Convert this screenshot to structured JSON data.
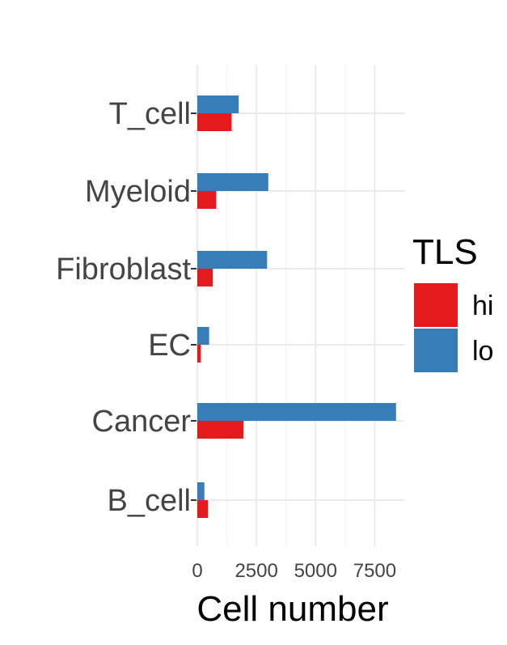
{
  "chart_data": {
    "type": "bar",
    "orientation": "horizontal",
    "categories": [
      "T_cell",
      "Myeloid",
      "Fibroblast",
      "EC",
      "Cancer",
      "B_cell"
    ],
    "series": [
      {
        "name": "hi",
        "color": "#E41A1C",
        "values": [
          1450,
          800,
          650,
          150,
          1950,
          450
        ]
      },
      {
        "name": "lo",
        "color": "#377EB8",
        "values": [
          1750,
          3000,
          2950,
          500,
          8400,
          300
        ]
      }
    ],
    "xlabel": "Cell number",
    "ylabel": "",
    "xlim": [
      0,
      8750
    ],
    "xticks": [
      0,
      2500,
      5000,
      7500
    ],
    "grid": true,
    "legend": {
      "title": "TLS",
      "position": "right"
    }
  }
}
